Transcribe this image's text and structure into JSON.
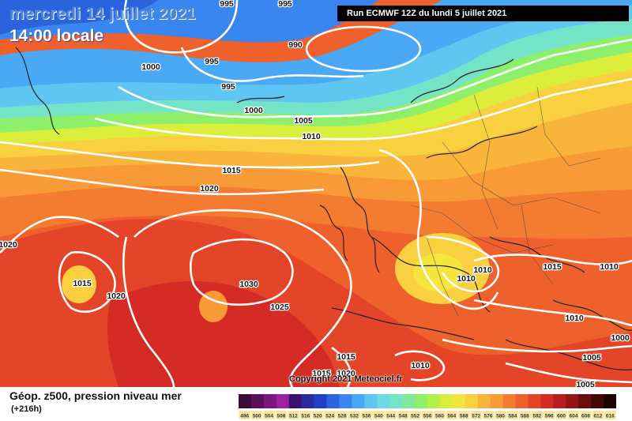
{
  "header": {
    "date": "mercredi 14 juillet 2021",
    "time": "14:00 locale",
    "run": "Run ECMWF 12Z du lundi 5 juillet 2021"
  },
  "footer": {
    "parameter": "Géop. z500, pression niveau mer",
    "lead": "(+216h)",
    "copyright": "Copyright 2021 Meteociel.fr"
  },
  "colorscale": {
    "ticks": [
      "496",
      "500",
      "504",
      "508",
      "512",
      "516",
      "520",
      "524",
      "528",
      "532",
      "536",
      "540",
      "544",
      "548",
      "552",
      "556",
      "560",
      "564",
      "568",
      "572",
      "576",
      "580",
      "584",
      "588",
      "592",
      "596",
      "600",
      "604",
      "608",
      "612",
      "616"
    ],
    "colors": [
      "#3a0a3a",
      "#5a0f5a",
      "#7c167c",
      "#9e209e",
      "#3c1070",
      "#2a2aa0",
      "#1f3fc8",
      "#2b63de",
      "#3a86f0",
      "#4aa8f5",
      "#5fc6f2",
      "#6fd8e4",
      "#74e3c8",
      "#7eea9a",
      "#8ef06a",
      "#b6f046",
      "#dcee3c",
      "#f4e63c",
      "#f8d040",
      "#f9b43c",
      "#f89a36",
      "#f47c30",
      "#ee602c",
      "#e44428",
      "#d42c24",
      "#b81c1c",
      "#941414",
      "#6c0c0c",
      "#420606",
      "#1e0202"
    ]
  },
  "isobars": [
    {
      "label": "995",
      "x": "287",
      "y": "4"
    },
    {
      "label": "995",
      "x": "361",
      "y": "4"
    },
    {
      "label": "990",
      "x": "374",
      "y": "56"
    },
    {
      "label": "1000",
      "x": "191",
      "y": "84"
    },
    {
      "label": "995",
      "x": "268",
      "y": "77"
    },
    {
      "label": "995",
      "x": "289",
      "y": "109"
    },
    {
      "label": "1000",
      "x": "321",
      "y": "139"
    },
    {
      "label": "1005",
      "x": "384",
      "y": "152"
    },
    {
      "label": "1010",
      "x": "394",
      "y": "172"
    },
    {
      "label": "1015",
      "x": "293",
      "y": "215"
    },
    {
      "label": "1020",
      "x": "265",
      "y": "238"
    },
    {
      "label": "1020",
      "x": "10",
      "y": "309"
    },
    {
      "label": "1015",
      "x": "104",
      "y": "358"
    },
    {
      "label": "1020",
      "x": "147",
      "y": "374"
    },
    {
      "label": "1030",
      "x": "315",
      "y": "359"
    },
    {
      "label": "1025",
      "x": "354",
      "y": "388"
    },
    {
      "label": "1015",
      "x": "438",
      "y": "451"
    },
    {
      "label": "1015",
      "x": "407",
      "y": "472"
    },
    {
      "label": "1020",
      "x": "438",
      "y": "472"
    },
    {
      "label": "1010",
      "x": "532",
      "y": "462"
    },
    {
      "label": "1010",
      "x": "611",
      "y": "341"
    },
    {
      "label": "1010",
      "x": "590",
      "y": "352"
    },
    {
      "label": "1015",
      "x": "699",
      "y": "337"
    },
    {
      "label": "1010",
      "x": "771",
      "y": "337"
    },
    {
      "label": "1010",
      "x": "727",
      "y": "402"
    },
    {
      "label": "1000",
      "x": "785",
      "y": "427"
    },
    {
      "label": "1005",
      "x": "749",
      "y": "452"
    },
    {
      "label": "1005",
      "x": "741",
      "y": "486"
    }
  ]
}
